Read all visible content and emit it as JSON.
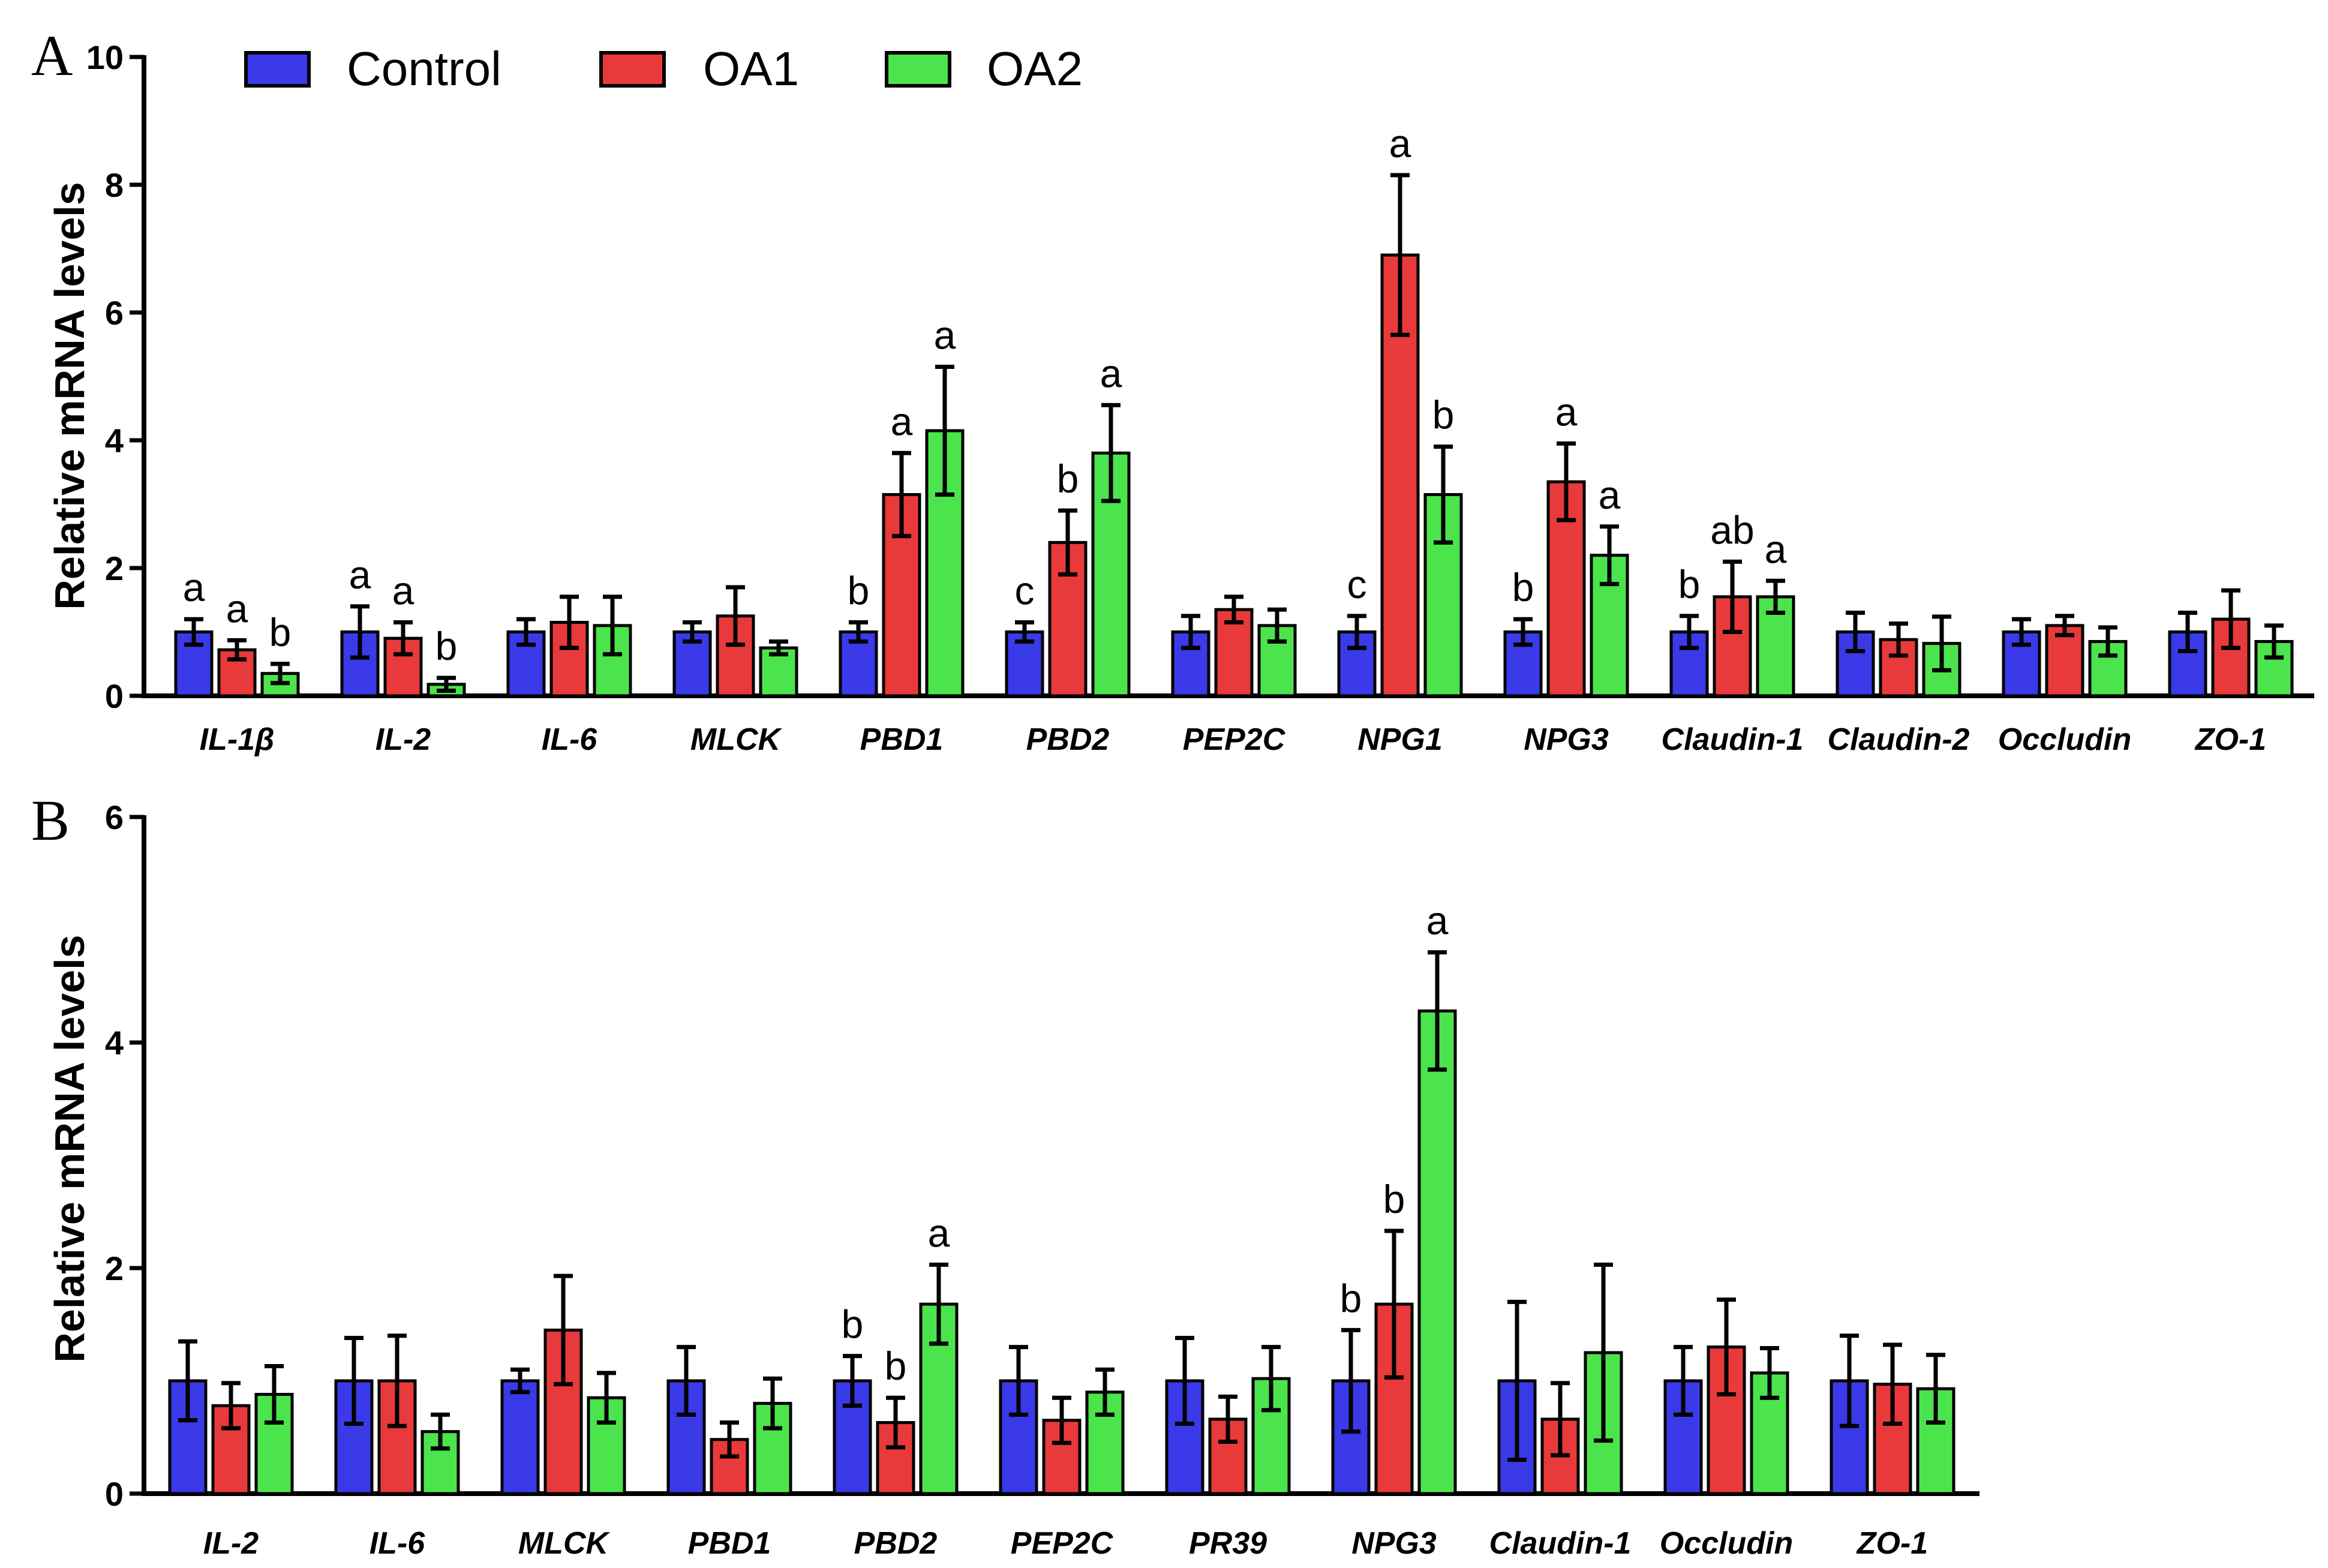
{
  "colors": {
    "Control": "#3a3ae8",
    "OA1": "#e83a3a",
    "OA2": "#4ce44c",
    "axis": "#000000"
  },
  "legend": [
    {
      "name": "Control",
      "color": "#3a3ae8"
    },
    {
      "name": "OA1",
      "color": "#e83a3a"
    },
    {
      "name": "OA2",
      "color": "#4ce44c"
    }
  ],
  "chart_data": [
    {
      "panel": "A",
      "type": "bar",
      "title": "",
      "ylabel": "Relative mRNA levels",
      "ylim": [
        0,
        10
      ],
      "yticks": [
        0,
        2,
        4,
        6,
        8,
        10
      ],
      "categories": [
        "IL-1β",
        "IL-2",
        "IL-6",
        "MLCK",
        "PBD1",
        "PBD2",
        "PEP2C",
        "NPG1",
        "NPG3",
        "Claudin-1",
        "Claudin-2",
        "Occludin",
        "ZO-1"
      ],
      "series": [
        {
          "name": "Control",
          "values": [
            1.0,
            1.0,
            1.0,
            1.0,
            1.0,
            1.0,
            1.0,
            1.0,
            1.0,
            1.0,
            1.0,
            1.0,
            1.0
          ],
          "errors": [
            0.2,
            0.4,
            0.2,
            0.15,
            0.15,
            0.15,
            0.25,
            0.25,
            0.2,
            0.25,
            0.3,
            0.2,
            0.3
          ],
          "labels": [
            "a",
            "a",
            "",
            "",
            "b",
            "c",
            "",
            "c",
            "b",
            "b",
            "",
            "",
            ""
          ]
        },
        {
          "name": "OA1",
          "values": [
            0.72,
            0.9,
            1.15,
            1.25,
            3.15,
            2.4,
            1.35,
            6.9,
            3.35,
            1.55,
            0.88,
            1.1,
            1.2
          ],
          "errors": [
            0.15,
            0.25,
            0.4,
            0.45,
            0.65,
            0.5,
            0.2,
            1.25,
            0.6,
            0.55,
            0.25,
            0.15,
            0.45
          ],
          "labels": [
            "a",
            "a",
            "",
            "",
            "a",
            "b",
            "",
            "a",
            "a",
            "ab",
            "",
            "",
            ""
          ]
        },
        {
          "name": "OA2",
          "values": [
            0.35,
            0.18,
            1.1,
            0.75,
            4.15,
            3.8,
            1.1,
            3.15,
            2.2,
            1.55,
            0.82,
            0.85,
            0.85
          ],
          "errors": [
            0.15,
            0.1,
            0.45,
            0.1,
            1.0,
            0.75,
            0.25,
            0.75,
            0.45,
            0.25,
            0.42,
            0.22,
            0.25
          ],
          "labels": [
            "b",
            "b",
            "",
            "",
            "a",
            "a",
            "",
            "b",
            "a",
            "a",
            "",
            "",
            ""
          ]
        }
      ]
    },
    {
      "panel": "B",
      "type": "bar",
      "title": "",
      "ylabel": "Relative mRNA levels",
      "ylim": [
        0,
        6
      ],
      "yticks": [
        0,
        2,
        4,
        6
      ],
      "categories": [
        "IL-2",
        "IL-6",
        "MLCK",
        "PBD1",
        "PBD2",
        "PEP2C",
        "PR39",
        "NPG3",
        "Claudin-1",
        "Occludin",
        "ZO-1"
      ],
      "series": [
        {
          "name": "Control",
          "values": [
            1.0,
            1.0,
            1.0,
            1.0,
            1.0,
            1.0,
            1.0,
            1.0,
            1.0,
            1.0,
            1.0
          ],
          "errors": [
            0.35,
            0.38,
            0.1,
            0.3,
            0.22,
            0.3,
            0.38,
            0.45,
            0.7,
            0.3,
            0.4
          ],
          "labels": [
            "",
            "",
            "",
            "",
            "b",
            "",
            "",
            "b",
            "",
            "",
            ""
          ]
        },
        {
          "name": "OA1",
          "values": [
            0.78,
            1.0,
            1.45,
            0.48,
            0.63,
            0.65,
            0.66,
            1.68,
            0.66,
            1.3,
            0.97
          ],
          "errors": [
            0.2,
            0.4,
            0.48,
            0.15,
            0.22,
            0.2,
            0.2,
            0.65,
            0.32,
            0.42,
            0.35
          ],
          "labels": [
            "",
            "",
            "",
            "",
            "b",
            "",
            "",
            "b",
            "",
            "",
            ""
          ]
        },
        {
          "name": "OA2",
          "values": [
            0.88,
            0.55,
            0.85,
            0.8,
            1.68,
            0.9,
            1.02,
            4.28,
            1.25,
            1.07,
            0.93
          ],
          "errors": [
            0.25,
            0.15,
            0.22,
            0.22,
            0.35,
            0.2,
            0.28,
            0.52,
            0.78,
            0.22,
            0.3
          ],
          "labels": [
            "",
            "",
            "",
            "",
            "a",
            "",
            "",
            "a",
            "",
            "",
            ""
          ]
        }
      ]
    }
  ],
  "panels": [
    "A",
    "B"
  ]
}
